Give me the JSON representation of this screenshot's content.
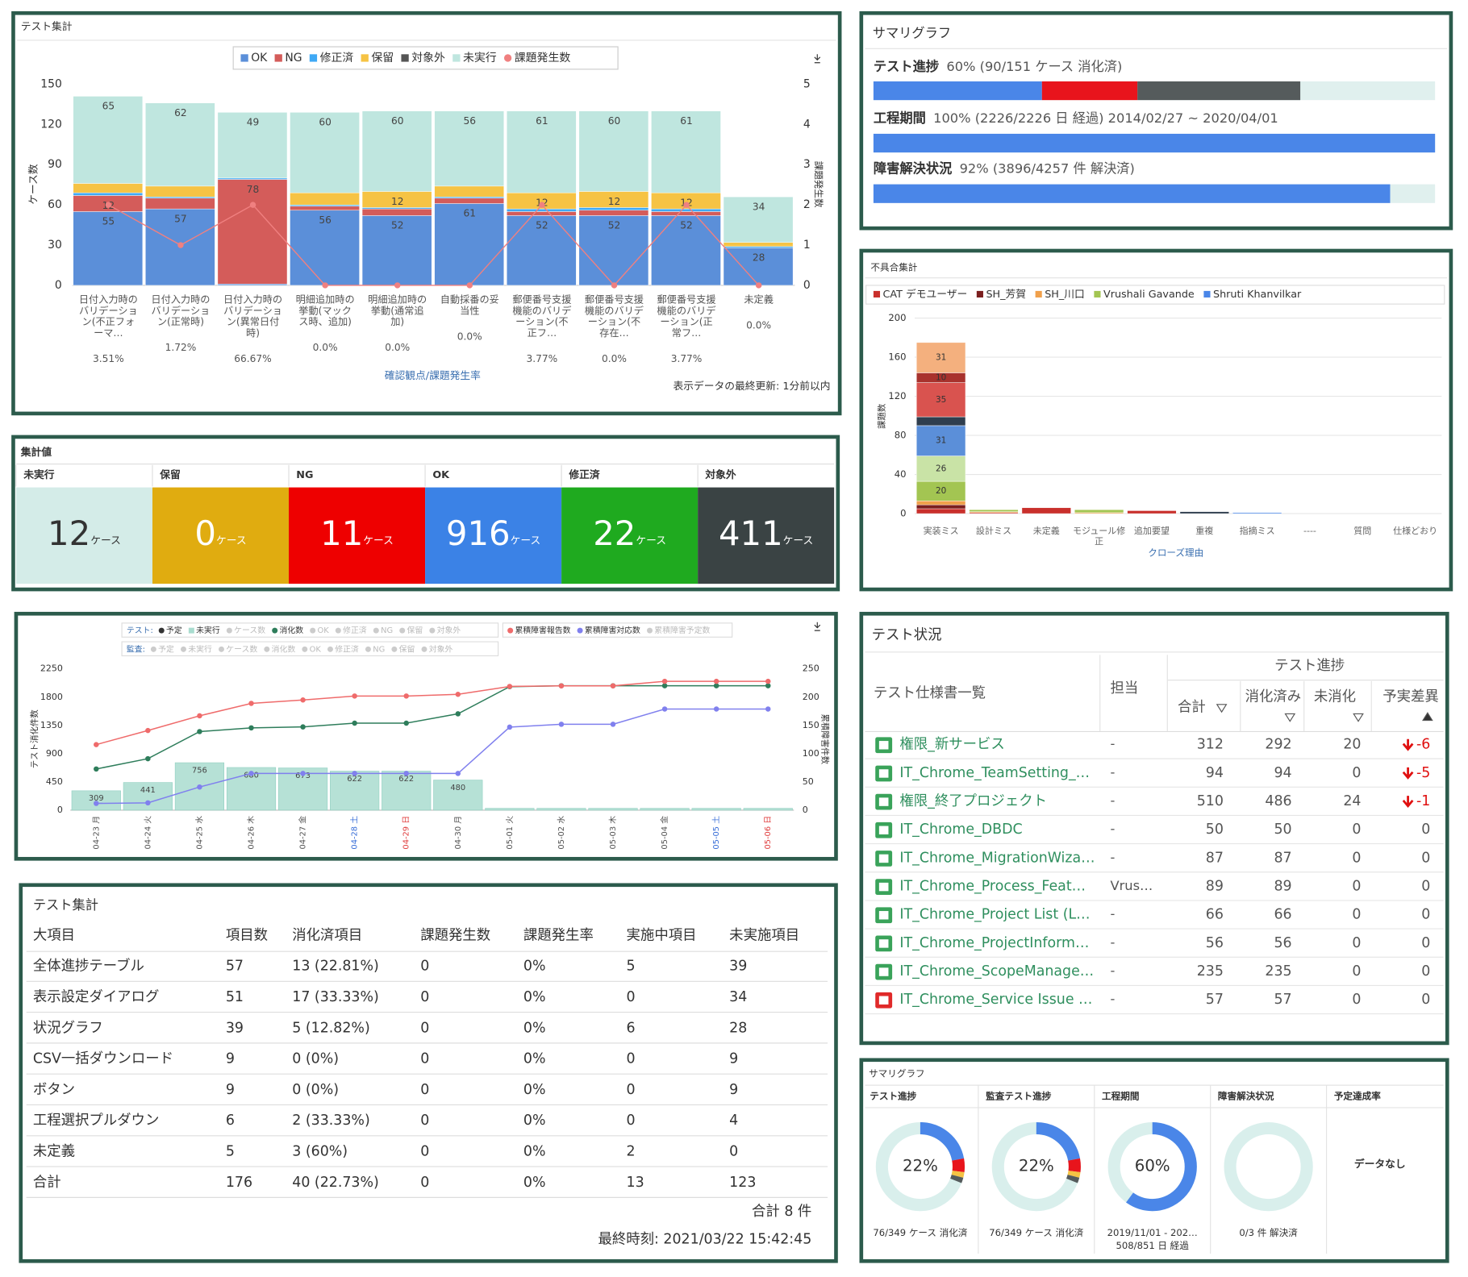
{
  "chart_data": [
    {
      "type": "stacked_bar_line",
      "title": "テスト集計",
      "categories": [
        "日付入力時のバリデーション(不正フォーマ…",
        "日付入力時のバリデーション(正常時)",
        "日付入力時のバリデーション(異常日付時)",
        "明細追加時の挙動(マックス時、追加)",
        "明細追加時の挙動(通常追加)",
        "自動採番の妥当性",
        "郵便番号支援機能のバリデーション(不正フ…",
        "郵便番号支援機能のバリデーション(不存在…",
        "郵便番号支援機能のバリデーション(正常フ…",
        "未定義"
      ],
      "rate_labels": [
        "3.51%",
        "1.72%",
        "66.67%",
        "0.0%",
        "0.0%",
        "0.0%",
        "3.77%",
        "0.0%",
        "3.77%",
        "0.0%"
      ],
      "xlabel": "確認観点/課題発生率",
      "ylabel": "ケース数",
      "y2label": "課題発生数",
      "ylim": [
        0,
        150
      ],
      "yticks": [
        0,
        30,
        60,
        90,
        120,
        150
      ],
      "y2lim": [
        0,
        5
      ],
      "y2ticks": [
        0,
        1,
        2,
        3,
        4,
        5
      ],
      "series": [
        {
          "name": "OK",
          "color": "#5b8fd9",
          "values": [
            55,
            57,
            1,
            56,
            52,
            61,
            52,
            52,
            52,
            28
          ]
        },
        {
          "name": "NG",
          "color": "#d45c5a",
          "values": [
            12,
            8,
            78,
            3,
            5,
            4,
            3,
            4,
            3,
            0
          ]
        },
        {
          "name": "修正済",
          "color": "#3fa9f5",
          "values": [
            2,
            1,
            1,
            1,
            1,
            1,
            2,
            2,
            2,
            1
          ]
        },
        {
          "name": "保留",
          "color": "#f6c344",
          "values": [
            7,
            8,
            0,
            9,
            12,
            8,
            12,
            12,
            12,
            3
          ]
        },
        {
          "name": "対象外",
          "color": "#555555",
          "values": [
            0,
            0,
            0,
            0,
            0,
            0,
            0,
            0,
            0,
            0
          ]
        },
        {
          "name": "未実行",
          "color": "#bfe6df",
          "values": [
            65,
            62,
            49,
            60,
            60,
            56,
            61,
            60,
            61,
            34
          ]
        },
        {
          "name": "課題発生数",
          "color": "#f08080",
          "type": "line",
          "axis": "y2",
          "values": [
            2,
            1,
            2,
            0,
            0,
            0,
            2,
            0,
            2,
            0
          ]
        }
      ],
      "footer": "表示データの最終更新: 1分前以内"
    },
    {
      "type": "stacked_bar",
      "title": "不具合集計",
      "categories": [
        "実装ミス",
        "設計ミス",
        "未定義",
        "モジュール修正",
        "追加要望",
        "重複",
        "指摘ミス",
        "----",
        "質問",
        "仕様どおり"
      ],
      "xlabel": "クローズ理由",
      "ylabel": "課題数",
      "ylim": [
        0,
        200
      ],
      "yticks": [
        0,
        40,
        80,
        120,
        160,
        200
      ],
      "grid": true,
      "series": [
        {
          "name": "CAT デモユーザー",
          "color": "#c9302c",
          "values": [
            5,
            1,
            6,
            0,
            3,
            0,
            0,
            0,
            0,
            0
          ]
        },
        {
          "name": "SH_芳賀",
          "color": "#7b1f1f",
          "values": [
            4,
            0,
            0,
            0,
            0,
            0,
            0,
            0,
            0,
            0
          ]
        },
        {
          "name": "SH_川口",
          "color": "#f0a04b",
          "values": [
            4,
            1,
            0,
            1,
            0,
            0,
            0,
            0,
            0,
            0
          ]
        },
        {
          "name": "Vrushali Gavande",
          "color": "#a3c552",
          "values": [
            20,
            2,
            0,
            3,
            0,
            0,
            0,
            0,
            0,
            0
          ]
        },
        {
          "name": "Shruti Khanvilkar",
          "color": "#4a86e8",
          "values": [
            0,
            0,
            0,
            0,
            0,
            0,
            1,
            0,
            0,
            0
          ]
        },
        {
          "color": "#c9e3a6",
          "values": [
            26,
            0,
            0,
            0,
            0,
            0,
            0,
            0,
            0,
            0
          ]
        },
        {
          "color": "#5b8fd9",
          "values": [
            31,
            0,
            0,
            0,
            0,
            0,
            0,
            0,
            0,
            0
          ]
        },
        {
          "color": "#2f3e4e",
          "values": [
            9,
            0,
            0,
            0,
            0,
            2,
            0,
            0,
            0,
            0
          ]
        },
        {
          "color": "#d9534f",
          "values": [
            35,
            0,
            0,
            0,
            0,
            0,
            0,
            0,
            0,
            0
          ]
        },
        {
          "color": "#a8322d",
          "values": [
            10,
            0,
            0,
            0,
            0,
            0,
            0,
            0,
            0,
            0
          ]
        },
        {
          "color": "#f4b07e",
          "values": [
            31,
            0,
            0,
            0,
            0,
            0,
            0,
            0,
            0,
            0
          ]
        }
      ]
    },
    {
      "type": "bar_line_combo",
      "x": [
        "04-23 月",
        "04-24 火",
        "04-25 水",
        "04-26 木",
        "04-27 金",
        "04-28 土",
        "04-29 日",
        "04-30 月",
        "05-01 火",
        "05-02 水",
        "05-03 木",
        "05-04 金",
        "05-05 土",
        "05-06 日"
      ],
      "x_label_colors": [
        "#555555",
        "#555555",
        "#555555",
        "#555555",
        "#555555",
        "#3a6fd8",
        "#e04040",
        "#555555",
        "#555555",
        "#555555",
        "#555555",
        "#555555",
        "#3a6fd8",
        "#e04040"
      ],
      "ylabel": "テスト消化件数",
      "y2label": "累積障害件数",
      "ylim": [
        0,
        2250
      ],
      "yticks": [
        0,
        450,
        900,
        1350,
        1800,
        2250
      ],
      "y2lim": [
        0,
        250
      ],
      "y2ticks": [
        0,
        50,
        100,
        150,
        200,
        250
      ],
      "legend_groups": [
        {
          "label": "テスト:",
          "series": [
            {
              "name": "予定",
              "color": "#333333"
            },
            {
              "name": "未実行",
              "color": "#a9dccf",
              "type": "bar",
              "values": [
                309,
                441,
                756,
                680,
                673,
                622,
                622,
                480,
                30,
                30,
                30,
                30,
                30,
                30
              ]
            },
            {
              "name": "ケース数",
              "color": "#cccccc",
              "hidden": true
            },
            {
              "name": "消化数",
              "color": "#2e7d5b",
              "type": "line",
              "values": [
                656,
                820,
                1252,
                1311,
                1326,
                1386,
                1386,
                1535,
                1967,
                1982,
                1982,
                1982,
                1982,
                1982
              ]
            },
            {
              "name": "OK",
              "color": "#cccccc",
              "hidden": true
            },
            {
              "name": "修正済",
              "color": "#cccccc",
              "hidden": true
            },
            {
              "name": "NG",
              "color": "#cccccc",
              "hidden": true
            },
            {
              "name": "保留",
              "color": "#cccccc",
              "hidden": true
            },
            {
              "name": "対象外",
              "color": "#cccccc",
              "hidden": true
            }
          ]
        },
        {
          "label": "監査:",
          "series": [
            {
              "name": "予定",
              "color": "#cccccc",
              "hidden": true
            },
            {
              "name": "未実行",
              "color": "#cccccc",
              "hidden": true
            },
            {
              "name": "ケース数",
              "color": "#cccccc",
              "hidden": true
            },
            {
              "name": "消化数",
              "color": "#cccccc",
              "hidden": true
            },
            {
              "name": "OK",
              "color": "#cccccc",
              "hidden": true
            },
            {
              "name": "修正済",
              "color": "#cccccc",
              "hidden": true
            },
            {
              "name": "NG",
              "color": "#cccccc",
              "hidden": true
            },
            {
              "name": "保留",
              "color": "#cccccc",
              "hidden": true
            },
            {
              "name": "対象外",
              "color": "#cccccc",
              "hidden": true
            }
          ]
        }
      ],
      "defect_series": [
        {
          "name": "累積障害報告数",
          "color": "#ef6b6b",
          "type": "line",
          "axis": "y2",
          "values": [
            116,
            141,
            167,
            189,
            195,
            202,
            202,
            205,
            219,
            220,
            220,
            228,
            228,
            228
          ]
        },
        {
          "name": "累積障害対応数",
          "color": "#8080ee",
          "type": "line",
          "axis": "y2",
          "values": [
            12,
            13,
            41,
            65,
            65,
            65,
            65,
            65,
            147,
            152,
            152,
            179,
            179,
            179
          ]
        },
        {
          "name": "累積障害予定数",
          "color": "#cccccc",
          "hidden": true
        }
      ]
    }
  ],
  "summary_graph": {
    "title": "サマリグラフ",
    "xlim": [
      0,
      100
    ],
    "track_color": "#e0f0ee",
    "rows": [
      {
        "label": "テスト進捗",
        "text": "60% (90/151 ケース 消化済)",
        "segments": [
          {
            "color": "#4a86e8",
            "value": 30
          },
          {
            "color": "#e8141c",
            "value": 17
          },
          {
            "color": "#555b5c",
            "value": 29
          }
        ]
      },
      {
        "label": "工程期間",
        "text": "100% (2226/2226 日 経過) 2014/02/27 ~ 2020/04/01",
        "segments": [
          {
            "color": "#4a86e8",
            "value": 100
          }
        ]
      },
      {
        "label": "障害解決状況",
        "text": "92% (3896/4257 件 解決済)",
        "segments": [
          {
            "color": "#4a86e8",
            "value": 92
          }
        ]
      }
    ]
  },
  "tally": {
    "title": "集計値",
    "unit": "ケース",
    "items": [
      {
        "label": "未実行",
        "value": 12,
        "color": "#d4ece8",
        "text_color": "#333333"
      },
      {
        "label": "保留",
        "value": 0,
        "color": "#e0ac10",
        "text_color": "#ffffff"
      },
      {
        "label": "NG",
        "value": 11,
        "color": "#ee0000",
        "text_color": "#ffffff"
      },
      {
        "label": "OK",
        "value": 916,
        "color": "#3b82e6",
        "text_color": "#ffffff"
      },
      {
        "label": "修正済",
        "value": 22,
        "color": "#1faa1f",
        "text_color": "#ffffff"
      },
      {
        "label": "対象外",
        "value": 411,
        "color": "#3a4344",
        "text_color": "#ffffff"
      }
    ]
  },
  "test_status": {
    "title": "テスト状況",
    "headers": {
      "name": "テスト仕様書一覧",
      "owner": "担当",
      "progress": "テスト進捗",
      "total": "合計",
      "done": "消化済み",
      "remaining": "未消化",
      "diff": "予実差異"
    },
    "rows": [
      {
        "name": "権限_新サービス",
        "owner": "-",
        "total": 312,
        "done": 292,
        "remaining": 20,
        "diff": -6,
        "icon_color": "#3aa35a"
      },
      {
        "name": "IT_Chrome_TeamSetting_…",
        "owner": "-",
        "total": 94,
        "done": 94,
        "remaining": 0,
        "diff": -5,
        "icon_color": "#3aa35a"
      },
      {
        "name": "権限_終了プロジェクト",
        "owner": "-",
        "total": 510,
        "done": 486,
        "remaining": 24,
        "diff": -1,
        "icon_color": "#3aa35a"
      },
      {
        "name": "IT_Chrome_DBDC",
        "owner": "-",
        "total": 50,
        "done": 50,
        "remaining": 0,
        "diff": 0,
        "icon_color": "#3aa35a"
      },
      {
        "name": "IT_Chrome_MigrationWiza…",
        "owner": "-",
        "total": 87,
        "done": 87,
        "remaining": 0,
        "diff": 0,
        "icon_color": "#3aa35a"
      },
      {
        "name": "IT_Chrome_Process_Feat…",
        "owner": "Vrus…",
        "total": 89,
        "done": 89,
        "remaining": 0,
        "diff": 0,
        "icon_color": "#3aa35a"
      },
      {
        "name": "IT_Chrome_Project List (L…",
        "owner": "-",
        "total": 66,
        "done": 66,
        "remaining": 0,
        "diff": 0,
        "icon_color": "#3aa35a"
      },
      {
        "name": "IT_Chrome_ProjectInform…",
        "owner": "-",
        "total": 56,
        "done": 56,
        "remaining": 0,
        "diff": 0,
        "icon_color": "#3aa35a"
      },
      {
        "name": "IT_Chrome_ScopeManage…",
        "owner": "-",
        "total": 235,
        "done": 235,
        "remaining": 0,
        "diff": 0,
        "icon_color": "#3aa35a"
      },
      {
        "name": "IT_Chrome_Service Issue …",
        "owner": "-",
        "total": 57,
        "done": 57,
        "remaining": 0,
        "diff": 0,
        "icon_color": "#e02a2a"
      }
    ]
  },
  "test_table": {
    "title": "テスト集計",
    "columns": [
      "大項目",
      "項目数",
      "消化済項目",
      "課題発生数",
      "課題発生率",
      "実施中項目",
      "未実施項目"
    ],
    "rows": [
      [
        "全体進捗テーブル",
        57,
        "13 (22.81%)",
        0,
        "0%",
        5,
        39
      ],
      [
        "表示設定ダイアログ",
        51,
        "17 (33.33%)",
        0,
        "0%",
        0,
        34
      ],
      [
        "状況グラフ",
        39,
        "5 (12.82%)",
        0,
        "0%",
        6,
        28
      ],
      [
        "CSV一括ダウンロード",
        9,
        "0 (0%)",
        0,
        "0%",
        0,
        9
      ],
      [
        "ボタン",
        9,
        "0 (0%)",
        0,
        "0%",
        0,
        9
      ],
      [
        "工程選択プルダウン",
        6,
        "2 (33.33%)",
        0,
        "0%",
        0,
        4
      ],
      [
        "未定義",
        5,
        "3 (60%)",
        0,
        "0%",
        2,
        0
      ],
      [
        "合計",
        176,
        "40 (22.73%)",
        0,
        "0%",
        13,
        123
      ]
    ],
    "count_text": "合計 8 件",
    "timestamp": "最終時刻: 2021/03/22 15:42:45"
  },
  "summary_donuts": {
    "title": "サマリグラフ",
    "xlim": [
      0,
      100
    ],
    "track_color": "#d9efec",
    "items": [
      {
        "label": "テスト進捗",
        "center": "22%",
        "captions": [
          "76/349 ケース 消化済"
        ],
        "segments": [
          {
            "color": "#4a86e8",
            "value": 22
          },
          {
            "color": "#e8141c",
            "value": 5
          },
          {
            "color": "#f6c344",
            "value": 2
          },
          {
            "color": "#555b5c",
            "value": 2
          }
        ]
      },
      {
        "label": "監査テスト進捗",
        "center": "22%",
        "captions": [
          "76/349 ケース 消化済"
        ],
        "segments": [
          {
            "color": "#4a86e8",
            "value": 22
          },
          {
            "color": "#e8141c",
            "value": 5
          },
          {
            "color": "#f6c344",
            "value": 2
          },
          {
            "color": "#555b5c",
            "value": 2
          }
        ]
      },
      {
        "label": "工程期間",
        "center": "60%",
        "captions": [
          "2019/11/01 - 202…",
          "508/851 日 経過"
        ],
        "segments": [
          {
            "color": "#4a86e8",
            "value": 60
          }
        ]
      },
      {
        "label": "障害解決状況",
        "captions": [
          "0/3 件 解決済"
        ],
        "segments": []
      },
      {
        "label": "予定達成率",
        "empty_text": "データなし"
      }
    ]
  }
}
